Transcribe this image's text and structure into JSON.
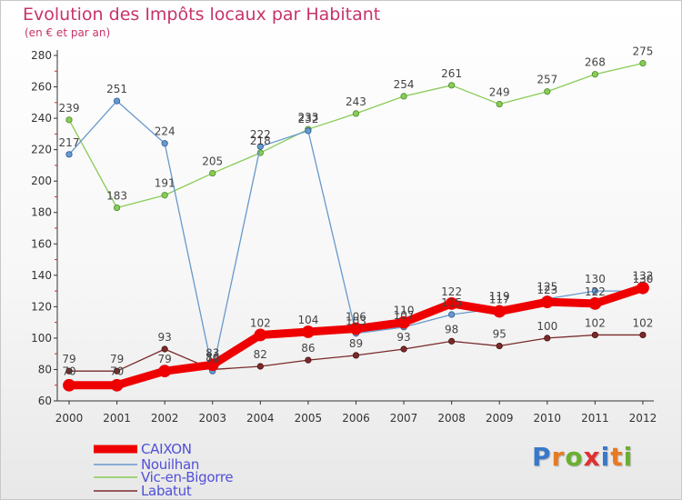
{
  "title": "Evolution des Impôts locaux par Habitant",
  "subtitle": "(en € et par an)",
  "brand": "Proxiti",
  "chart_data": {
    "type": "line",
    "title": "Evolution des Impôts locaux par Habitant",
    "subtitle": "(en € et par an)",
    "x": [
      "2000",
      "2001",
      "2002",
      "2003",
      "2004",
      "2005",
      "2006",
      "2007",
      "2008",
      "2009",
      "2010",
      "2011",
      "2012"
    ],
    "ylim": [
      60,
      280
    ],
    "yticks": [
      60,
      80,
      100,
      120,
      140,
      160,
      180,
      200,
      220,
      240,
      260,
      280
    ],
    "grid": false,
    "legend_position": "bottom-left",
    "series": [
      {
        "name": "CAIXON",
        "color": "#ee0000",
        "values": [
          70,
          70,
          79,
          83,
          102,
          104,
          106,
          110,
          122,
          117,
          123,
          122,
          132
        ]
      },
      {
        "name": "Nouilhan",
        "color": "#6699cc",
        "values": [
          217,
          251,
          224,
          79,
          222,
          232,
          103,
          107,
          115,
          119,
          125,
          130,
          130
        ]
      },
      {
        "name": "Vic-en-Bigorre",
        "color": "#88cc55",
        "values": [
          239,
          183,
          191,
          205,
          218,
          233,
          243,
          254,
          261,
          249,
          257,
          268,
          275
        ]
      },
      {
        "name": "Labatut",
        "color": "#7a2a2a",
        "values": [
          79,
          79,
          93,
          80,
          82,
          86,
          89,
          93,
          98,
          95,
          100,
          102,
          102
        ]
      }
    ]
  }
}
